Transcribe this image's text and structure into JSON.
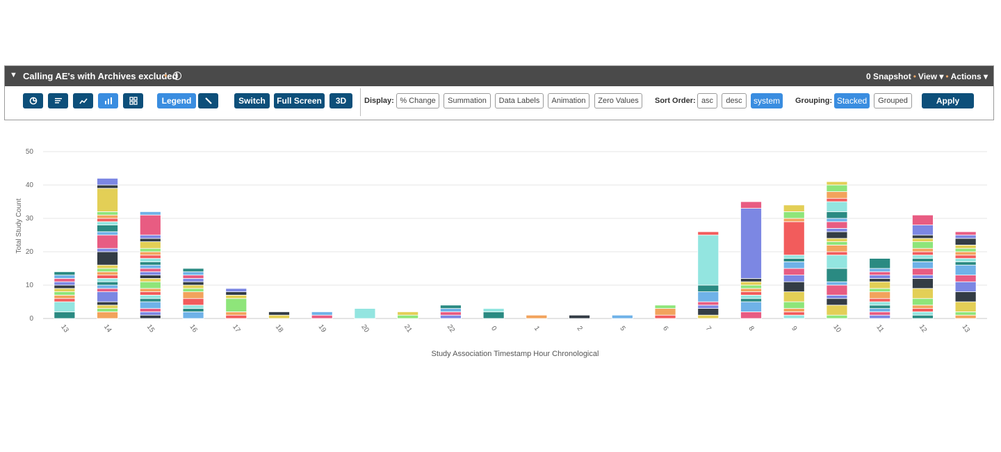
{
  "panel": {
    "title": "Calling AE's with Archives excluded",
    "collapse_icon": "triangle-down-icon",
    "info_icon": "info-icon",
    "menu": {
      "snapshot": "0 Snapshot",
      "view": "View ▾",
      "actions": "Actions ▾"
    }
  },
  "toolbar": {
    "chart_type_icons": [
      "pie-chart-icon",
      "bar-horizontal-icon",
      "line-chart-icon",
      "column-chart-icon",
      "grid-icon"
    ],
    "legend": "Legend",
    "pencil_icon": "pencil-icon",
    "switch": "Switch",
    "full_screen": "Full Screen",
    "three_d": "3D",
    "display_label": "Display:",
    "display_options": [
      "% Change",
      "Summation",
      "Data Labels",
      "Animation",
      "Zero Values"
    ],
    "sort_label": "Sort Order:",
    "sort_options": [
      "asc",
      "desc",
      "system"
    ],
    "sort_selected": "system",
    "grouping_label": "Grouping:",
    "grouping_options": [
      "Stacked",
      "Grouped"
    ],
    "grouping_selected": "Stacked",
    "apply": "Apply"
  },
  "chart_data": {
    "type": "bar",
    "stacked": true,
    "xlabel": "Study Association Timestamp Hour Chronological",
    "ylabel": "Total Study Count",
    "ylim": [
      0,
      50
    ],
    "yticks": [
      0,
      10,
      20,
      30,
      40,
      50
    ],
    "grid": true,
    "categories": [
      "13",
      "14",
      "15",
      "16",
      "17",
      "18",
      "19",
      "20",
      "21",
      "22",
      "0",
      "1",
      "2",
      "5",
      "6",
      "7",
      "8",
      "9",
      "10",
      "11",
      "12",
      "13"
    ],
    "palette": [
      "#2a8a82",
      "#93e5e0",
      "#f25c5c",
      "#f2a35c",
      "#8ee57a",
      "#e3cf56",
      "#333c45",
      "#7c87e3",
      "#e85c82",
      "#6fb2e8"
    ],
    "stacks": [
      [
        2,
        3,
        1,
        1,
        1,
        1,
        1,
        1,
        1,
        1,
        1
      ],
      [
        2,
        1,
        1,
        1,
        3,
        1,
        1,
        1,
        1,
        1,
        1,
        1,
        1,
        4,
        1,
        4,
        1,
        2,
        1,
        1,
        1,
        1,
        7,
        1,
        2
      ],
      [
        1,
        1,
        1,
        2,
        1,
        1,
        1,
        1,
        2,
        1,
        1,
        1,
        1,
        1,
        1,
        1,
        1,
        1,
        1,
        2,
        1,
        1,
        6,
        1
      ],
      [
        2,
        1,
        1,
        2,
        2,
        1,
        1,
        1,
        1,
        1,
        1,
        1
      ],
      [
        1,
        1,
        4,
        1,
        1,
        1
      ],
      [
        1,
        1
      ],
      [
        1,
        1
      ],
      [
        3
      ],
      [
        1,
        1
      ],
      [
        1,
        1,
        1,
        1
      ],
      [
        2,
        1
      ],
      [
        1
      ],
      [
        1
      ],
      [
        1
      ],
      [
        1,
        2,
        1
      ],
      [
        1,
        2,
        1,
        1,
        3,
        2,
        15,
        1
      ],
      [
        2,
        3,
        1,
        1,
        1,
        1,
        1,
        1,
        1,
        21,
        2
      ],
      [
        1,
        1,
        1,
        2,
        3,
        3,
        2,
        2,
        2,
        1,
        1,
        10,
        1,
        2,
        2
      ],
      [
        1,
        3,
        2,
        1,
        3,
        1,
        4,
        4,
        1,
        2,
        1,
        1,
        2,
        1,
        2,
        1,
        2,
        3,
        1,
        2,
        2,
        1
      ],
      [
        1,
        1,
        1,
        1,
        1,
        1,
        2,
        1,
        2,
        1,
        1,
        1,
        1,
        3
      ],
      [
        1,
        1,
        1,
        1,
        2,
        3,
        3,
        1,
        2,
        2,
        1,
        1,
        1,
        1,
        2,
        1,
        1,
        3,
        3
      ],
      [
        1,
        1,
        3,
        3,
        3,
        2,
        3,
        1,
        1,
        1,
        1,
        1,
        1,
        2,
        1,
        1
      ]
    ]
  }
}
